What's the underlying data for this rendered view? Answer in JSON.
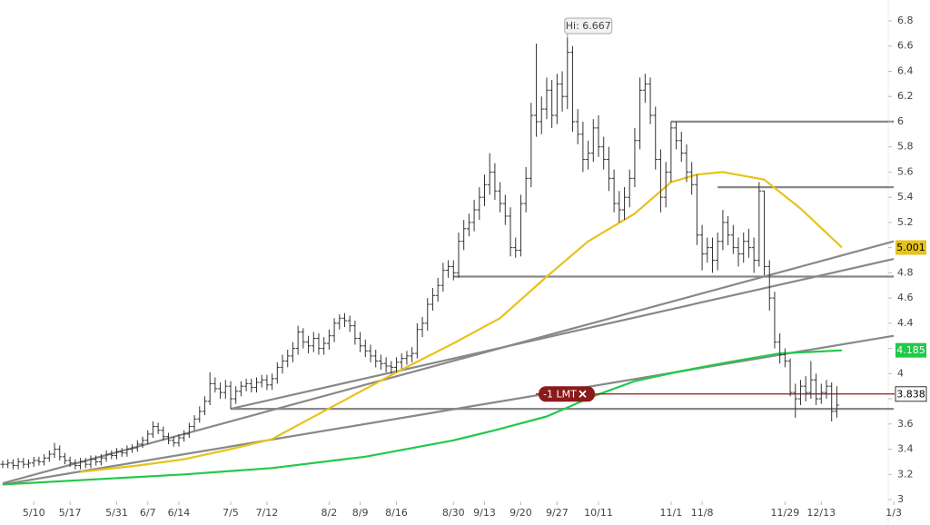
{
  "chart_data": {
    "type": "ohlc",
    "annotation": "Hi: 6.667",
    "xlim": [
      0,
      172.5
    ],
    "ylim": [
      3,
      6.8
    ],
    "xticks": [
      {
        "value": 6,
        "label": "5/10"
      },
      {
        "value": 13,
        "label": "5/17"
      },
      {
        "value": 22,
        "label": "5/31"
      },
      {
        "value": 28,
        "label": "6/7"
      },
      {
        "value": 34,
        "label": "6/14"
      },
      {
        "value": 44,
        "label": "7/5"
      },
      {
        "value": 51,
        "label": "7/12"
      },
      {
        "value": 63,
        "label": "8/2"
      },
      {
        "value": 69,
        "label": "8/9"
      },
      {
        "value": 76,
        "label": "8/16"
      },
      {
        "value": 87,
        "label": "8/30"
      },
      {
        "value": 93,
        "label": "9/13"
      },
      {
        "value": 100,
        "label": "9/20"
      },
      {
        "value": 107,
        "label": "9/27"
      },
      {
        "value": 115,
        "label": "10/11"
      },
      {
        "value": 129,
        "label": "11/1"
      },
      {
        "value": 135,
        "label": "11/8"
      },
      {
        "value": 151,
        "label": "11/29"
      },
      {
        "value": 158,
        "label": "12/13"
      },
      {
        "value": 172,
        "label": "1/3"
      }
    ],
    "yticks": [
      3,
      3.2,
      3.4,
      3.6,
      3.8,
      4,
      4.2,
      4.4,
      4.6,
      4.8,
      5,
      5.2,
      5.4,
      5.6,
      5.8,
      6,
      6.2,
      6.4,
      6.6,
      6.8
    ],
    "bar_color": "#333333",
    "x": [
      0,
      1,
      2,
      3,
      4,
      5,
      6,
      7,
      8,
      9,
      10,
      11,
      12,
      13,
      14,
      15,
      16,
      17,
      18,
      19,
      20,
      21,
      22,
      23,
      24,
      25,
      26,
      27,
      28,
      29,
      30,
      31,
      32,
      33,
      34,
      35,
      36,
      37,
      38,
      39,
      40,
      41,
      42,
      43,
      44,
      45,
      46,
      47,
      48,
      49,
      50,
      51,
      52,
      53,
      54,
      55,
      56,
      57,
      58,
      59,
      60,
      61,
      62,
      63,
      64,
      65,
      66,
      67,
      68,
      69,
      70,
      71,
      72,
      73,
      74,
      75,
      76,
      77,
      78,
      79,
      80,
      81,
      82,
      83,
      84,
      85,
      86,
      87,
      88,
      89,
      90,
      91,
      92,
      93,
      94,
      95,
      96,
      97,
      98,
      99,
      100,
      101,
      102,
      103,
      104,
      105,
      106,
      107,
      108,
      109,
      110,
      111,
      112,
      113,
      114,
      115,
      116,
      117,
      118,
      119,
      120,
      121,
      122,
      123,
      124,
      125,
      126,
      127,
      128,
      129,
      130,
      131,
      132,
      133,
      134,
      135,
      136,
      137,
      138,
      139,
      140,
      141,
      142,
      143,
      144,
      145,
      146,
      147,
      148,
      149,
      150,
      151,
      152,
      153,
      154,
      155,
      156,
      157,
      158,
      159,
      160,
      161
    ],
    "open": [
      3.28,
      3.28,
      3.29,
      3.27,
      3.3,
      3.28,
      3.29,
      3.31,
      3.3,
      3.33,
      3.36,
      3.4,
      3.34,
      3.31,
      3.29,
      3.27,
      3.3,
      3.28,
      3.32,
      3.3,
      3.33,
      3.36,
      3.35,
      3.38,
      3.37,
      3.4,
      3.41,
      3.44,
      3.47,
      3.52,
      3.58,
      3.55,
      3.5,
      3.47,
      3.45,
      3.49,
      3.52,
      3.58,
      3.64,
      3.7,
      3.78,
      3.92,
      3.88,
      3.85,
      3.9,
      3.8,
      3.86,
      3.9,
      3.92,
      3.89,
      3.93,
      3.95,
      3.91,
      3.96,
      4.05,
      4.1,
      4.14,
      4.2,
      4.33,
      4.25,
      4.22,
      4.28,
      4.2,
      4.24,
      4.3,
      4.4,
      4.44,
      4.42,
      4.38,
      4.28,
      4.22,
      4.18,
      4.14,
      4.1,
      4.08,
      4.06,
      4.05,
      4.09,
      4.12,
      4.14,
      4.16,
      4.35,
      4.4,
      4.55,
      4.62,
      4.7,
      4.82,
      4.85,
      4.8,
      5.05,
      5.15,
      5.2,
      5.3,
      5.4,
      5.5,
      5.6,
      5.45,
      5.35,
      5.25,
      5.0,
      4.98,
      5.35,
      5.55,
      6.05,
      6.0,
      6.1,
      6.25,
      6.05,
      6.3,
      6.2,
      6.55,
      6.0,
      5.9,
      5.7,
      5.75,
      5.95,
      5.8,
      5.7,
      5.55,
      5.35,
      5.3,
      5.4,
      5.55,
      5.85,
      6.25,
      6.3,
      6.05,
      5.7,
      5.4,
      5.6,
      5.95,
      5.85,
      5.75,
      5.6,
      5.5,
      5.1,
      4.95,
      5.0,
      4.9,
      5.05,
      5.2,
      5.1,
      5.0,
      4.95,
      5.05,
      5.0,
      4.9,
      5.45,
      4.85,
      4.6,
      4.25,
      4.15,
      4.1,
      3.85,
      3.8,
      3.9,
      3.85,
      3.95,
      3.8,
      3.85,
      3.9,
      3.7
    ],
    "high": [
      3.31,
      3.32,
      3.32,
      3.33,
      3.33,
      3.32,
      3.34,
      3.34,
      3.36,
      3.39,
      3.45,
      3.43,
      3.37,
      3.34,
      3.32,
      3.33,
      3.33,
      3.35,
      3.35,
      3.36,
      3.39,
      3.39,
      3.41,
      3.41,
      3.43,
      3.44,
      3.47,
      3.5,
      3.55,
      3.62,
      3.61,
      3.58,
      3.53,
      3.5,
      3.52,
      3.55,
      3.61,
      3.67,
      3.74,
      3.82,
      4.01,
      3.97,
      3.93,
      3.95,
      3.94,
      3.9,
      3.94,
      3.96,
      3.96,
      3.97,
      3.99,
      3.99,
      4.0,
      4.09,
      4.15,
      4.19,
      4.25,
      4.38,
      4.36,
      4.3,
      4.33,
      4.32,
      4.29,
      4.35,
      4.44,
      4.47,
      4.48,
      4.46,
      4.42,
      4.33,
      4.27,
      4.23,
      4.19,
      4.15,
      4.13,
      4.1,
      4.13,
      4.16,
      4.18,
      4.21,
      4.4,
      4.45,
      4.6,
      4.68,
      4.76,
      4.88,
      4.9,
      4.9,
      5.12,
      5.22,
      5.27,
      5.38,
      5.48,
      5.58,
      5.75,
      5.67,
      5.52,
      5.42,
      5.32,
      5.08,
      5.42,
      5.64,
      6.15,
      6.62,
      6.2,
      6.35,
      6.33,
      6.38,
      6.4,
      6.667,
      6.6,
      6.1,
      6.0,
      5.85,
      6.02,
      6.05,
      5.88,
      5.8,
      5.62,
      5.45,
      5.48,
      5.62,
      5.95,
      6.35,
      6.38,
      6.35,
      6.12,
      5.78,
      5.68,
      6.0,
      6.0,
      5.92,
      5.82,
      5.68,
      5.58,
      5.18,
      5.08,
      5.08,
      5.12,
      5.3,
      5.25,
      5.18,
      5.08,
      5.12,
      5.15,
      5.08,
      5.52,
      5.45,
      4.9,
      4.65,
      4.32,
      4.2,
      4.12,
      3.92,
      3.95,
      3.98,
      4.1,
      4.0,
      3.92,
      3.95,
      3.93,
      3.9
    ],
    "low": [
      3.25,
      3.25,
      3.24,
      3.24,
      3.25,
      3.25,
      3.26,
      3.27,
      3.27,
      3.3,
      3.33,
      3.31,
      3.28,
      3.26,
      3.24,
      3.24,
      3.25,
      3.25,
      3.27,
      3.27,
      3.3,
      3.32,
      3.32,
      3.34,
      3.34,
      3.37,
      3.38,
      3.41,
      3.44,
      3.49,
      3.52,
      3.47,
      3.44,
      3.42,
      3.42,
      3.46,
      3.49,
      3.55,
      3.61,
      3.67,
      3.75,
      3.85,
      3.8,
      3.8,
      3.72,
      3.76,
      3.82,
      3.86,
      3.85,
      3.85,
      3.89,
      3.87,
      3.87,
      3.92,
      4.0,
      4.05,
      4.09,
      4.15,
      4.2,
      4.16,
      4.17,
      4.15,
      4.15,
      4.19,
      4.25,
      4.35,
      4.37,
      4.33,
      4.23,
      4.17,
      4.13,
      4.09,
      4.05,
      4.03,
      4.01,
      4.0,
      4.01,
      4.04,
      4.07,
      4.09,
      4.12,
      4.29,
      4.34,
      4.5,
      4.57,
      4.65,
      4.76,
      4.74,
      4.76,
      4.98,
      5.09,
      5.13,
      5.22,
      5.33,
      5.42,
      5.38,
      5.28,
      5.18,
      4.93,
      4.92,
      4.93,
      5.28,
      5.48,
      5.88,
      5.9,
      6.02,
      5.95,
      5.98,
      6.08,
      6.1,
      5.92,
      5.82,
      5.6,
      5.62,
      5.68,
      5.72,
      5.62,
      5.45,
      5.28,
      5.2,
      5.22,
      5.32,
      5.48,
      5.78,
      6.15,
      5.98,
      5.62,
      5.28,
      5.32,
      5.52,
      5.78,
      5.68,
      5.52,
      5.42,
      5.02,
      4.82,
      4.88,
      4.8,
      4.82,
      4.98,
      5.02,
      4.95,
      4.85,
      4.88,
      4.92,
      4.8,
      4.85,
      4.78,
      4.5,
      4.2,
      4.08,
      4.05,
      3.82,
      3.65,
      3.75,
      3.78,
      3.8,
      3.75,
      3.76,
      3.8,
      3.62,
      3.65
    ],
    "close": [
      3.28,
      3.29,
      3.27,
      3.3,
      3.28,
      3.29,
      3.31,
      3.3,
      3.33,
      3.36,
      3.4,
      3.34,
      3.31,
      3.29,
      3.27,
      3.3,
      3.28,
      3.32,
      3.3,
      3.33,
      3.36,
      3.35,
      3.38,
      3.37,
      3.4,
      3.41,
      3.44,
      3.47,
      3.52,
      3.58,
      3.55,
      3.5,
      3.47,
      3.45,
      3.49,
      3.52,
      3.58,
      3.64,
      3.7,
      3.78,
      3.92,
      3.88,
      3.85,
      3.9,
      3.8,
      3.86,
      3.9,
      3.92,
      3.89,
      3.93,
      3.95,
      3.91,
      3.96,
      4.05,
      4.1,
      4.14,
      4.2,
      4.33,
      4.25,
      4.22,
      4.28,
      4.2,
      4.24,
      4.3,
      4.4,
      4.44,
      4.42,
      4.38,
      4.28,
      4.22,
      4.18,
      4.14,
      4.1,
      4.08,
      4.06,
      4.05,
      4.09,
      4.12,
      4.14,
      4.16,
      4.35,
      4.4,
      4.55,
      4.62,
      4.7,
      4.82,
      4.85,
      4.8,
      5.05,
      5.15,
      5.2,
      5.3,
      5.4,
      5.5,
      5.6,
      5.45,
      5.35,
      5.25,
      5.0,
      4.98,
      5.35,
      5.55,
      6.05,
      6.0,
      6.1,
      6.25,
      6.05,
      6.3,
      6.2,
      6.55,
      6.0,
      5.9,
      5.7,
      5.75,
      5.95,
      5.8,
      5.7,
      5.55,
      5.35,
      5.3,
      5.4,
      5.55,
      5.85,
      6.25,
      6.3,
      6.05,
      5.7,
      5.4,
      5.6,
      5.95,
      5.85,
      5.75,
      5.6,
      5.5,
      5.1,
      4.95,
      5.0,
      4.9,
      5.05,
      5.2,
      5.1,
      5.0,
      4.95,
      5.05,
      5.0,
      4.9,
      5.45,
      4.85,
      4.6,
      4.25,
      4.15,
      4.1,
      3.85,
      3.8,
      3.9,
      3.85,
      3.95,
      3.8,
      3.85,
      3.9,
      3.7,
      3.75
    ],
    "lines": [
      {
        "color": "#e8c21a",
        "label_text_color": "#000000",
        "x": [
          15,
          26,
          35,
          44,
          52,
          61,
          76,
          87,
          96,
          105,
          113,
          122,
          129,
          134,
          139,
          147,
          154,
          162
        ],
        "values": [
          3.22,
          3.27,
          3.32,
          3.4,
          3.48,
          3.68,
          4.01,
          4.24,
          4.44,
          4.77,
          5.05,
          5.27,
          5.52,
          5.58,
          5.6,
          5.54,
          5.31,
          5.001
        ]
      },
      {
        "color": "#22c94a",
        "label_text_color": "#ffffff",
        "x": [
          0,
          35,
          52,
          70,
          87,
          95,
          105,
          114,
          122,
          131,
          140,
          150,
          162
        ],
        "values": [
          3.12,
          3.2,
          3.25,
          3.34,
          3.47,
          3.55,
          3.66,
          3.82,
          3.94,
          4.02,
          4.09,
          4.16,
          4.185
        ]
      }
    ],
    "trendline_color": "#888888",
    "trendlines": [
      {
        "x": [
          0,
          172
        ],
        "values": [
          3.13,
          5.05
        ]
      },
      {
        "x": [
          44,
          172
        ],
        "values": [
          3.72,
          4.91
        ]
      },
      {
        "x": [
          0,
          172
        ],
        "values": [
          3.12,
          4.3
        ]
      },
      {
        "x": [
          129,
          172
        ],
        "values": [
          6,
          6
        ]
      },
      {
        "x": [
          138,
          172
        ],
        "values": [
          5.48,
          5.48
        ]
      },
      {
        "x": [
          87,
          172
        ],
        "values": [
          4.77,
          4.77
        ]
      },
      {
        "x": [
          44,
          172
        ],
        "values": [
          3.72,
          3.72
        ]
      }
    ],
    "order": {
      "label": "-1 LMT",
      "value": 3.838,
      "color": "#8b1a1a"
    }
  }
}
